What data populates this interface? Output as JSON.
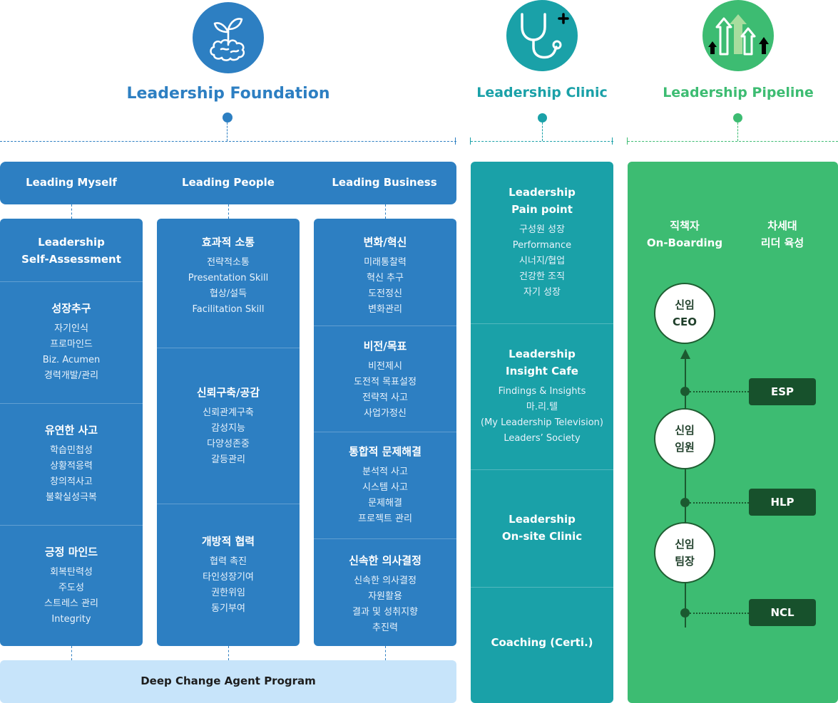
{
  "sections": {
    "foundation": {
      "title": "Leadership Foundation",
      "color": "#2d7fc2"
    },
    "clinic": {
      "title": "Leadership Clinic",
      "color": "#1aa1a8"
    },
    "pipeline": {
      "title": "Leadership Pipeline",
      "color": "#3dbc72"
    }
  },
  "icons": {
    "foundation": "brain-sprout-icon",
    "clinic": "stethoscope-plus-icon",
    "pipeline": "growth-arrows-icon"
  },
  "foundation": {
    "headers": [
      "Leading Myself",
      "Leading People",
      "Leading Business"
    ],
    "col1": [
      {
        "title_lines": [
          "Leadership",
          "Self-Assessment"
        ],
        "items": []
      },
      {
        "title_lines": [
          "성장추구"
        ],
        "items": [
          "자기인식",
          "프로마인드",
          "Biz. Acumen",
          "경력개발/관리"
        ]
      },
      {
        "title_lines": [
          "유연한 사고"
        ],
        "items": [
          "학습민첩성",
          "상황적응력",
          "창의적사고",
          "불확실성극복"
        ]
      },
      {
        "title_lines": [
          "긍정 마인드"
        ],
        "items": [
          "회복탄력성",
          "주도성",
          "스트레스 관리",
          "Integrity"
        ]
      }
    ],
    "col2": [
      {
        "title_lines": [
          "효과적 소통"
        ],
        "items": [
          "전략적소통",
          "Presentation Skill",
          "협상/설득",
          "Facilitation Skill"
        ]
      },
      {
        "title_lines": [
          "신뢰구축/공감"
        ],
        "items": [
          "신뢰관계구축",
          "감성지능",
          "다양성존중",
          "갈등관리"
        ]
      },
      {
        "title_lines": [
          "개방적 협력"
        ],
        "items": [
          "협력 촉진",
          "타인성장기여",
          "권한위임",
          "동기부여"
        ]
      }
    ],
    "col3": [
      {
        "title_lines": [
          "변화/혁신"
        ],
        "items": [
          "미래통찰력",
          "혁신 추구",
          "도전정신",
          "변화관리"
        ]
      },
      {
        "title_lines": [
          "비전/목표"
        ],
        "items": [
          "비전제시",
          "도전적 목표설정",
          "전략적 사고",
          "사업가정신"
        ]
      },
      {
        "title_lines": [
          "통합적 문제해결"
        ],
        "items": [
          "분석적 사고",
          "시스템 사고",
          "문제해결",
          "프로젝트 관리"
        ]
      },
      {
        "title_lines": [
          "신속한 의사결정"
        ],
        "items": [
          "신속한 의사결정",
          "자원활용",
          "결과 및 성취지향",
          "추진력"
        ]
      }
    ],
    "bottom": "Deep Change Agent Program"
  },
  "clinic": [
    {
      "title_lines": [
        "Leadership",
        "Pain point"
      ],
      "items": [
        "구성원 성장",
        "Performance",
        "시너지/협업",
        "건강한 조직",
        "자기 성장"
      ]
    },
    {
      "title_lines": [
        "Leadership",
        "Insight Cafe"
      ],
      "items": [
        "Findings & Insights",
        "마.리.텔",
        "(My Leadership Television)",
        "Leaders’ Society"
      ]
    },
    {
      "title_lines": [
        "Leadership",
        "On-site Clinic"
      ],
      "items": []
    },
    {
      "title_lines": [
        "Coaching (Certi.)"
      ],
      "items": []
    }
  ],
  "pipeline": {
    "col_headers": [
      [
        "직책자",
        "On-Boarding"
      ],
      [
        "차세대",
        "리더 육성"
      ]
    ],
    "nodes": [
      [
        "신임",
        "CEO"
      ],
      [
        "신임",
        "임원"
      ],
      [
        "신임",
        "팀장"
      ]
    ],
    "programs": [
      "ESP",
      "HLP",
      "NCL"
    ]
  }
}
